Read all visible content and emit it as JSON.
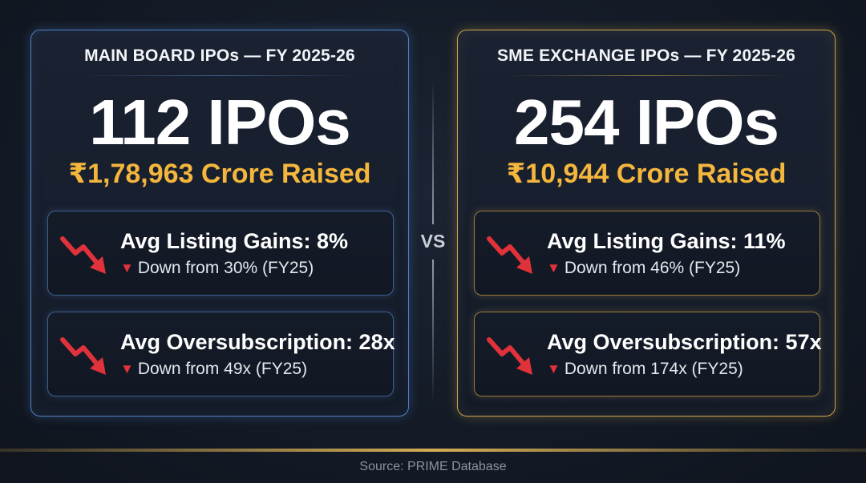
{
  "main_board": {
    "title": "MAIN BOARD IPOs — FY 2025-26",
    "count": "112 IPOs",
    "raised": "₹1,78,963 Crore Raised",
    "accent_color": "#4f7fc4",
    "stats": [
      {
        "label": "Avg Listing Gains: 8%",
        "sub": "Down from 30% (FY25)",
        "icon": "trend-down-icon"
      },
      {
        "label": "Avg Oversubscription: 28x",
        "sub": "Down from 49x (FY25)",
        "icon": "trend-down-icon"
      }
    ]
  },
  "sme_exchange": {
    "title": "SME EXCHANGE IPOs — FY 2025-26",
    "count": "254 IPOs",
    "raised": "₹10,944 Crore Raised",
    "accent_color": "#c9a24e",
    "stats": [
      {
        "label": "Avg Listing Gains: 11%",
        "sub": "Down from 46% (FY25)",
        "icon": "trend-down-icon"
      },
      {
        "label": "Avg Oversubscription: 57x",
        "sub": "Down from 174x (FY25)",
        "icon": "trend-down-icon"
      }
    ]
  },
  "divider": {
    "label": "VS"
  },
  "down_marker": "▼",
  "highlight_color": "#f4b63c",
  "down_color": "#e0323a",
  "footer": {
    "source": "Source: PRIME Database"
  }
}
